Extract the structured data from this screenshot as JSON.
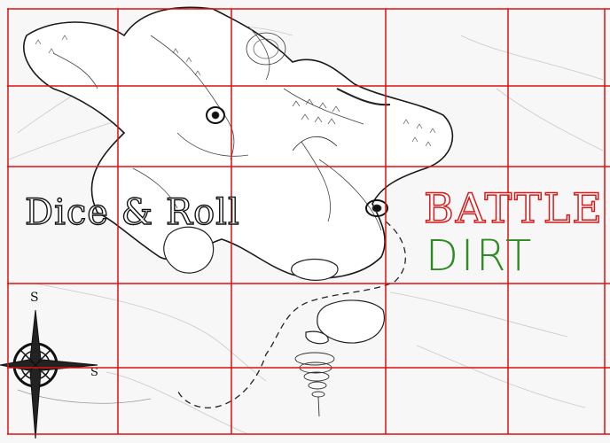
{
  "map": {
    "grid_color": "#dd1111",
    "title_left": "Dice & Roll",
    "title_right_line1": "BATTLE",
    "title_right_line2": "DIRT",
    "title_right_line1_color": "#d61a1a",
    "title_right_line2_color": "#2e8b22",
    "compass_letters": {
      "north": "S",
      "east": "S"
    }
  }
}
